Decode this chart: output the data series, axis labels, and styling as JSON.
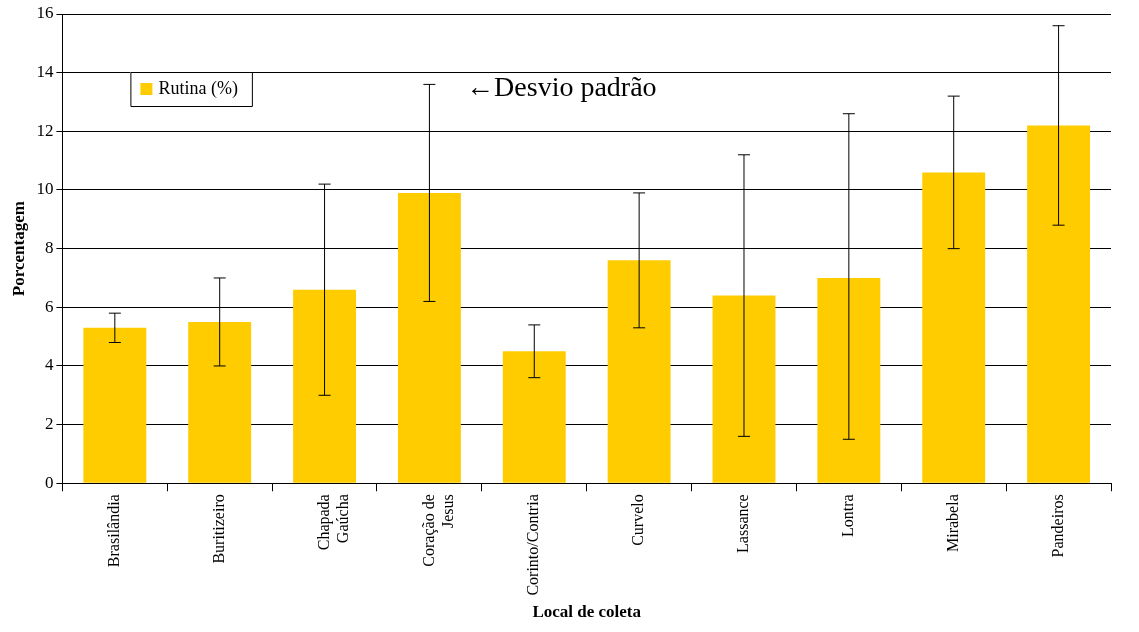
{
  "chart_data": {
    "type": "bar",
    "xlabel": "Local de coleta",
    "ylabel": "Porcentagem",
    "categories": [
      "Brasilândia",
      "Buritizeiro",
      "Chapada Gaúcha",
      "Coração de Jesus",
      "Corinto/Contria",
      "Curvelo",
      "Lassance",
      "Lontra",
      "Mirabela",
      "Pandeiros"
    ],
    "series": [
      {
        "name": "Rutina (%)",
        "color": "#ffcc00",
        "values": [
          5.3,
          5.5,
          6.6,
          9.9,
          4.5,
          7.6,
          6.4,
          7.0,
          10.6,
          12.2
        ],
        "errors": [
          0.5,
          1.5,
          3.6,
          3.7,
          0.9,
          2.3,
          4.8,
          [
            1.5,
            12.6
          ],
          2.6,
          3.4
        ]
      }
    ],
    "ylim": [
      0,
      16
    ],
    "yticks": [
      0,
      2,
      4,
      6,
      8,
      10,
      12,
      14,
      16
    ],
    "grid": "y",
    "legend": "top left",
    "annotations": [
      "←Desvio padrão"
    ]
  }
}
